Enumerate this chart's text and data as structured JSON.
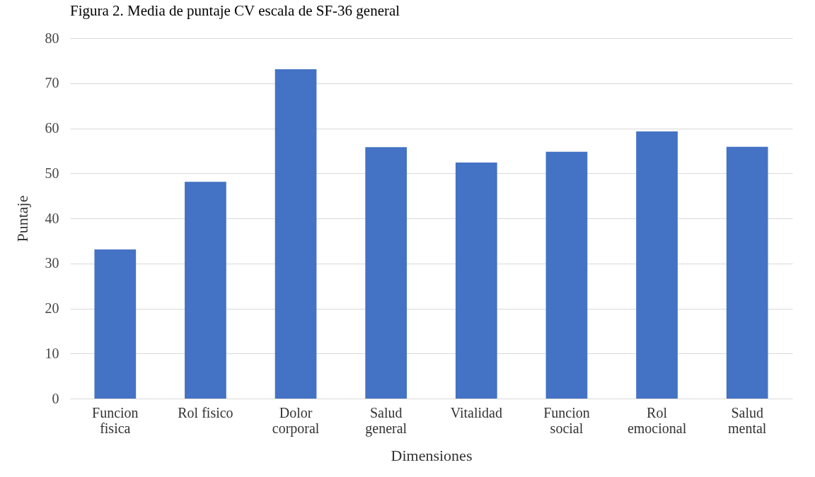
{
  "chart_data": {
    "type": "bar",
    "title": "Figura 2. Media de puntaje CV escala de SF-36 general",
    "xlabel": "Dimensiones",
    "ylabel": "Puntaje",
    "categories": [
      "Funcion fisica",
      "Rol fisico",
      "Dolor corporal",
      "Salud general",
      "Vitalidad",
      "Funcion social",
      "Rol emocional",
      "Salud mental"
    ],
    "values": [
      33.1,
      48.1,
      73.1,
      55.8,
      52.4,
      54.8,
      59.3,
      55.9
    ],
    "color": "#4472c4",
    "ylim": [
      0,
      80
    ],
    "yticks": [
      0,
      10,
      20,
      30,
      40,
      50,
      60,
      70,
      80
    ],
    "grid": "y"
  }
}
